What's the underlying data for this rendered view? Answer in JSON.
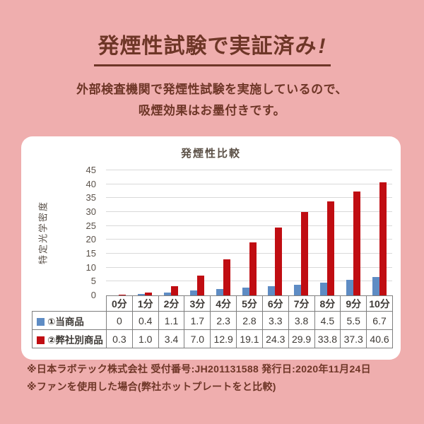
{
  "page": {
    "bg_color": "#EFAEAE",
    "accent_color": "#6E3627",
    "title_text": "発煙性試験で実証済み",
    "title_mark": "!",
    "subtitle_line1": "外部検査機関で発煙性試験を実施しているので、",
    "subtitle_line2": "吸煙効果はお墨付きです。",
    "note_line1": "※日本ラボテック株式会社 受付番号:JH201131588 発行日:2020年11月24日",
    "note_line2": "※ファンを使用した場合(弊社ホットプレートをと比較)"
  },
  "chart_data": {
    "type": "bar",
    "title": "発煙性比較",
    "ylabel": "特定光学密度",
    "xlabel": "",
    "categories": [
      "0分",
      "1分",
      "2分",
      "3分",
      "4分",
      "5分",
      "6分",
      "7分",
      "8分",
      "9分",
      "10分"
    ],
    "series": [
      {
        "name": "①当商品",
        "color": "#5E8CC4",
        "values": [
          0,
          0.4,
          1.1,
          1.7,
          2.3,
          2.8,
          3.3,
          3.8,
          4.5,
          5.5,
          6.7
        ],
        "value_labels": [
          "0",
          "0.4",
          "1.1",
          "1.7",
          "2.3",
          "2.8",
          "3.3",
          "3.8",
          "4.5",
          "5.5",
          "6.7"
        ]
      },
      {
        "name": "②弊社別商品",
        "color": "#C00D12",
        "values": [
          0.3,
          1.0,
          3.4,
          7.0,
          12.9,
          19.1,
          24.3,
          29.9,
          33.8,
          37.3,
          40.6
        ],
        "value_labels": [
          "0.3",
          "1.0",
          "3.4",
          "7.0",
          "12.9",
          "19.1",
          "24.3",
          "29.9",
          "33.8",
          "37.3",
          "40.6"
        ]
      }
    ],
    "ylim": [
      0,
      45
    ],
    "ytick_step": 5,
    "grid": true,
    "gridline_color": "#D9D9D9",
    "legend_position": "table-below"
  }
}
